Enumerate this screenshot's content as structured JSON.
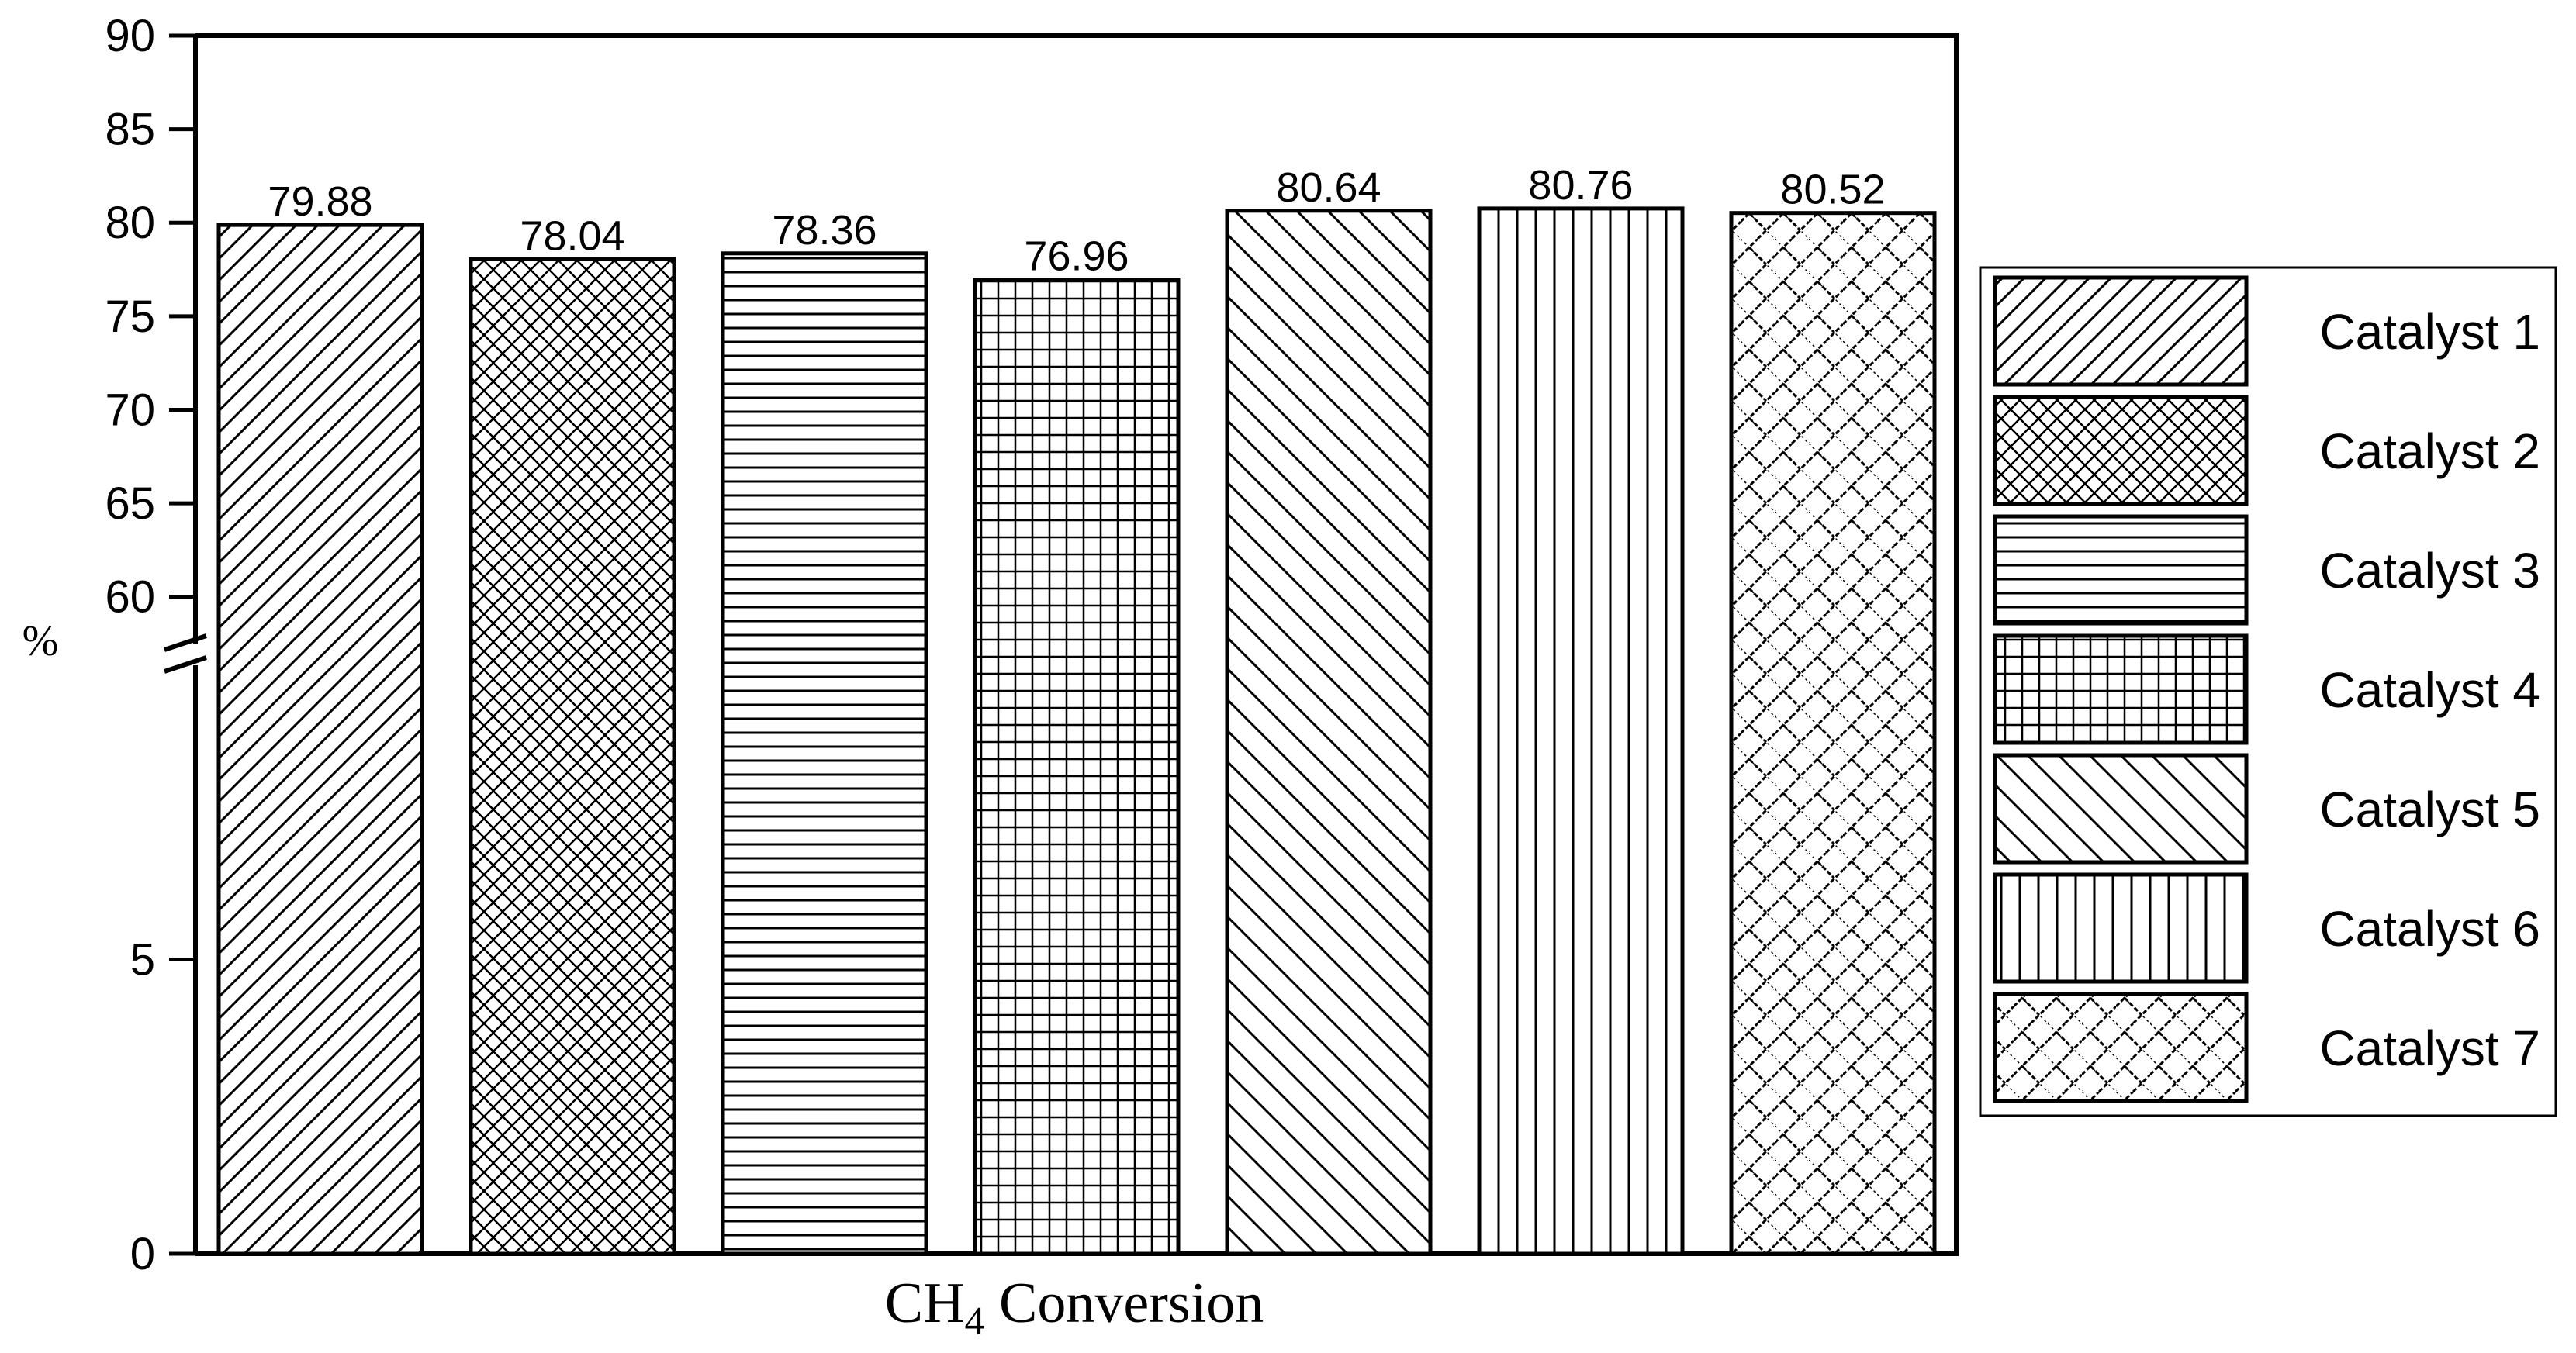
{
  "chart_data": {
    "type": "bar",
    "xlabel": "CH4 Conversion",
    "xlabel_main": "CH",
    "xlabel_sub": "4",
    "xlabel_rest": " Conversion",
    "ylabel": "%",
    "axis_break": "between 5 and 60",
    "ylim_lower_segment": [
      0,
      10
    ],
    "ylim_upper_segment": [
      57.5,
      90
    ],
    "yticks": [
      "0",
      "5",
      "60",
      "65",
      "70",
      "75",
      "80",
      "85",
      "90"
    ],
    "legend_position": "right",
    "grid": false,
    "series": [
      {
        "name": "Catalyst 1",
        "value": 79.88,
        "label": "79.88",
        "pattern": "diagonal-up"
      },
      {
        "name": "Catalyst 2",
        "value": 78.04,
        "label": "78.04",
        "pattern": "crosshatch-diagonal"
      },
      {
        "name": "Catalyst 3",
        "value": 78.36,
        "label": "78.36",
        "pattern": "horizontal"
      },
      {
        "name": "Catalyst 4",
        "value": 76.96,
        "label": "76.96",
        "pattern": "grid"
      },
      {
        "name": "Catalyst 5",
        "value": 80.64,
        "label": "80.64",
        "pattern": "diagonal-down"
      },
      {
        "name": "Catalyst 6",
        "value": 80.76,
        "label": "80.76",
        "pattern": "vertical"
      },
      {
        "name": "Catalyst 7",
        "value": 80.52,
        "label": "80.52",
        "pattern": "brick-diagonal"
      }
    ]
  }
}
